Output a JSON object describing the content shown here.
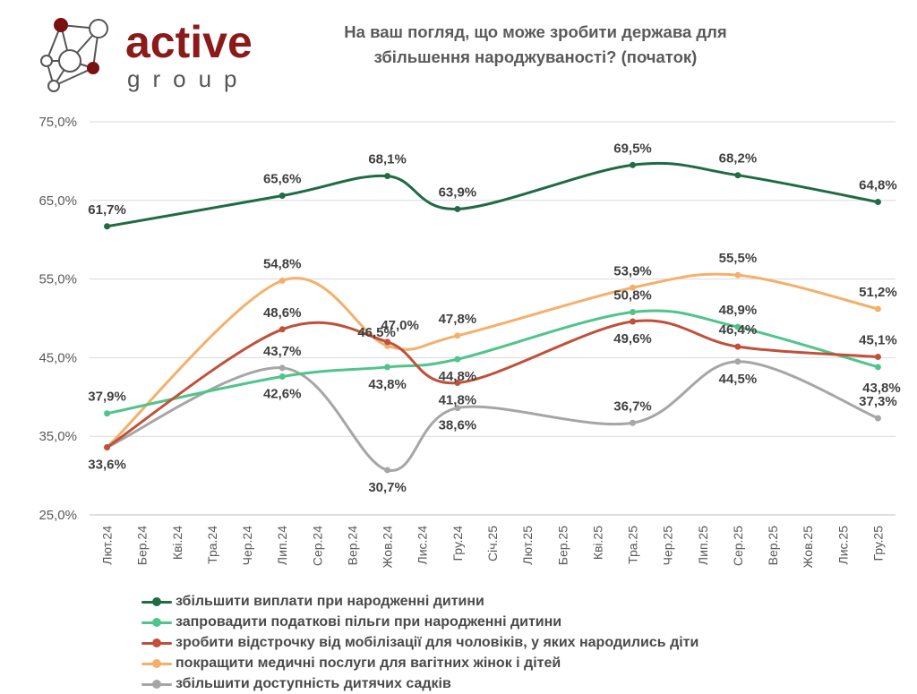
{
  "logo": {
    "word1": "active",
    "word2": "group",
    "brand_color": "#8b1a1a",
    "node_color": "#7a1010"
  },
  "header": {
    "title_line1": "На ваш погляд, що може зробити держава для",
    "title_line2": "збільшення народжуваності? (початок)"
  },
  "chart_data": {
    "type": "line",
    "title": "На ваш погляд, що може зробити держава для збільшення народжуваності? (початок)",
    "categories": [
      "Лют.24",
      "Бер.24",
      "Кві.24",
      "Тра.24",
      "Чер.24",
      "Лип.24",
      "Сер.24",
      "Вер.24",
      "Жов.24",
      "Лис.24",
      "Гру.24",
      "Січ.25",
      "Лют.25",
      "Бер.25",
      "Кві.25",
      "Тра.25",
      "Чер.25",
      "Лип.25",
      "Сер.25",
      "Вер.25",
      "Жов.25",
      "Лис.25",
      "Гру.25"
    ],
    "y_ticks": [
      "25,0%",
      "35,0%",
      "45,0%",
      "55,0%",
      "65,0%",
      "75,0%"
    ],
    "ylim": [
      25,
      75
    ],
    "xlabel": "",
    "ylabel": "",
    "grid": true,
    "legend_position": "bottom",
    "series": [
      {
        "name": "збільшити виплати при народженні дитини",
        "color": "#1f6b45",
        "points": [
          {
            "i": 0,
            "v": 61.7,
            "label": "61,7%",
            "pos": "above"
          },
          {
            "i": 5,
            "v": 65.6,
            "label": "65,6%",
            "pos": "above"
          },
          {
            "i": 8,
            "v": 68.1,
            "label": "68,1%",
            "pos": "above"
          },
          {
            "i": 10,
            "v": 63.9,
            "label": "63,9%",
            "pos": "above"
          },
          {
            "i": 15,
            "v": 69.5,
            "label": "69,5%",
            "pos": "above"
          },
          {
            "i": 18,
            "v": 68.2,
            "label": "68,2%",
            "pos": "above"
          },
          {
            "i": 22,
            "v": 64.8,
            "label": "64,8%",
            "pos": "above"
          }
        ]
      },
      {
        "name": "запровадити податкові пільги при народженні дитини",
        "color": "#4fc48b",
        "points": [
          {
            "i": 0,
            "v": 37.9,
            "label": "37,9%",
            "pos": "above"
          },
          {
            "i": 5,
            "v": 42.6,
            "label": "42,6%",
            "pos": "below"
          },
          {
            "i": 8,
            "v": 43.8,
            "label": "43,8%",
            "pos": "below"
          },
          {
            "i": 10,
            "v": 44.8,
            "label": "44,8%",
            "pos": "below"
          },
          {
            "i": 15,
            "v": 50.8,
            "label": "50,8%",
            "pos": "above"
          },
          {
            "i": 18,
            "v": 48.9,
            "label": "48,9%",
            "pos": "above"
          },
          {
            "i": 22,
            "v": 43.8,
            "label": "43,8%",
            "pos": "belowright"
          }
        ]
      },
      {
        "name": "зробити відстрочку від мобілізації для чоловіків, у яких народились діти",
        "color": "#c0503a",
        "points": [
          {
            "i": 0,
            "v": 33.6,
            "label": "",
            "pos": "none"
          },
          {
            "i": 5,
            "v": 48.6,
            "label": "48,6%",
            "pos": "above"
          },
          {
            "i": 8,
            "v": 47.0,
            "label": "47,0%",
            "pos": "aboveright"
          },
          {
            "i": 10,
            "v": 41.8,
            "label": "41,8%",
            "pos": "below"
          },
          {
            "i": 15,
            "v": 49.6,
            "label": "49,6%",
            "pos": "below"
          },
          {
            "i": 18,
            "v": 46.4,
            "label": "46,4%",
            "pos": "above"
          },
          {
            "i": 22,
            "v": 45.1,
            "label": "45,1%",
            "pos": "above"
          }
        ]
      },
      {
        "name": "покращити медичні послуги для вагітних жінок і дітей",
        "color": "#f4b06b",
        "points": [
          {
            "i": 0,
            "v": 33.6,
            "label": "",
            "pos": "none"
          },
          {
            "i": 5,
            "v": 54.8,
            "label": "54,8%",
            "pos": "above"
          },
          {
            "i": 8,
            "v": 46.5,
            "label": "46,5%",
            "pos": "aboveleft"
          },
          {
            "i": 10,
            "v": 47.8,
            "label": "47,8%",
            "pos": "above"
          },
          {
            "i": 15,
            "v": 53.9,
            "label": "53,9%",
            "pos": "above"
          },
          {
            "i": 18,
            "v": 55.5,
            "label": "55,5%",
            "pos": "above"
          },
          {
            "i": 22,
            "v": 51.2,
            "label": "51,2%",
            "pos": "above"
          }
        ]
      },
      {
        "name": "збільшити доступність дитячих садків",
        "color": "#a6a6a6",
        "points": [
          {
            "i": 0,
            "v": 33.6,
            "label": "33,6%",
            "pos": "below"
          },
          {
            "i": 5,
            "v": 43.7,
            "label": "43,7%",
            "pos": "above"
          },
          {
            "i": 8,
            "v": 30.7,
            "label": "30,7%",
            "pos": "below"
          },
          {
            "i": 10,
            "v": 38.6,
            "label": "38,6%",
            "pos": "below"
          },
          {
            "i": 15,
            "v": 36.7,
            "label": "36,7%",
            "pos": "above"
          },
          {
            "i": 18,
            "v": 44.5,
            "label": "44,5%",
            "pos": "below"
          },
          {
            "i": 22,
            "v": 37.3,
            "label": "37,3%",
            "pos": "above"
          }
        ]
      }
    ]
  }
}
